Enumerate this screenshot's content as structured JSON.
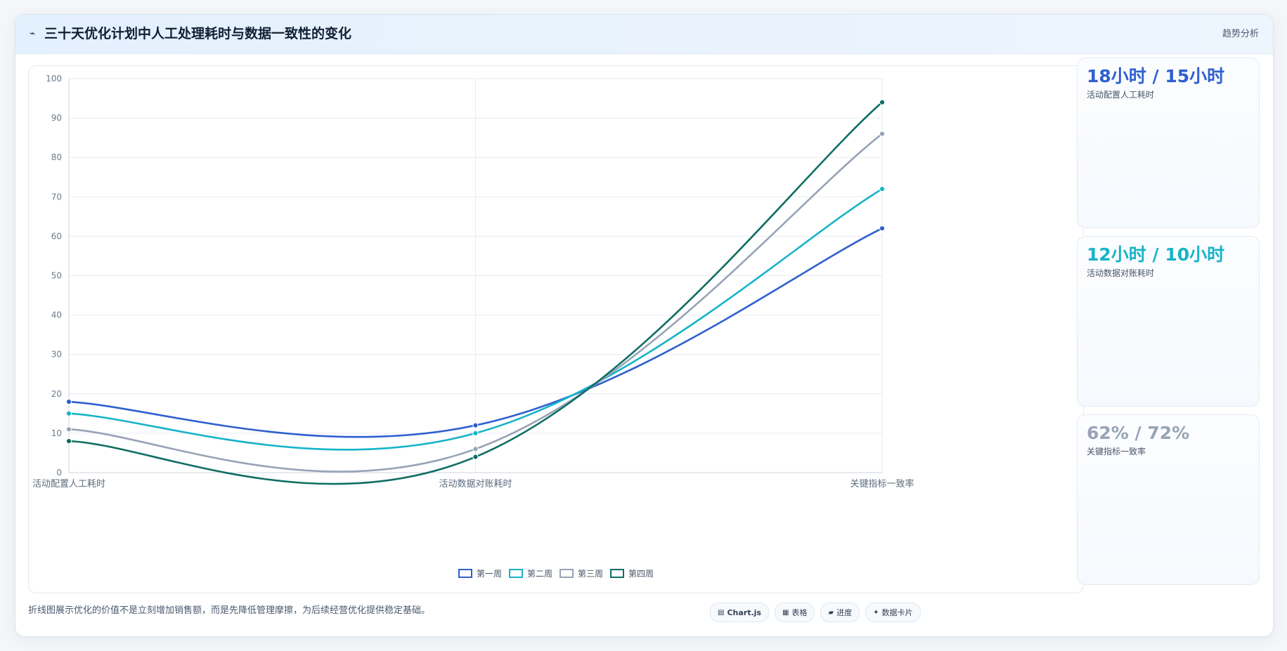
{
  "header": {
    "icon": "trend-icon",
    "icon_glyph": "⌁",
    "title": "三十天优化计划中人工处理耗时与数据一致性的变化",
    "tag": "趋势分析"
  },
  "chart_data": {
    "type": "line",
    "categories": [
      "活动配置人工耗时",
      "活动数据对账耗时",
      "关键指标一致率"
    ],
    "series": [
      {
        "name": "第一周",
        "values": [
          18,
          12,
          62
        ],
        "color": "#2f5fd0"
      },
      {
        "name": "第二周",
        "values": [
          15,
          10,
          72
        ],
        "color": "#17b3c8"
      },
      {
        "name": "第三周",
        "values": [
          11,
          6,
          86
        ],
        "color": "#98a3b6"
      },
      {
        "name": "第四周",
        "values": [
          8,
          4,
          94
        ],
        "color": "#0f6e63"
      }
    ],
    "ylim": [
      0,
      100
    ],
    "yticks": [
      0,
      10,
      20,
      30,
      40,
      50,
      60,
      70,
      80,
      90,
      100
    ],
    "grid": true,
    "legend_position": "bottom-center",
    "smooth": true
  },
  "stats": [
    {
      "value": "18小时 / 15小时",
      "label": "活动配置人工耗时",
      "color": "#2f5fd0"
    },
    {
      "value": "12小时 / 10小时",
      "label": "活动数据对账耗时",
      "color": "#17b3c8"
    },
    {
      "value": "62% / 72%",
      "label": "关键指标一致率",
      "color": "#98a3b6"
    }
  ],
  "footer": {
    "note": "折线图展示优化的价值不是立刻增加销售额，而是先降低管理摩擦，为后续经营优化提供稳定基础。"
  },
  "pills": [
    {
      "icon": "chart-icon",
      "glyph": "▤",
      "label": "Chart.js",
      "bold": true
    },
    {
      "icon": "table-icon",
      "glyph": "▦",
      "label": "表格",
      "bold": false
    },
    {
      "icon": "progress-icon",
      "glyph": "▰",
      "label": "进度",
      "bold": false
    },
    {
      "icon": "sparkle-icon",
      "glyph": "✦",
      "label": "数据卡片",
      "bold": false
    }
  ]
}
